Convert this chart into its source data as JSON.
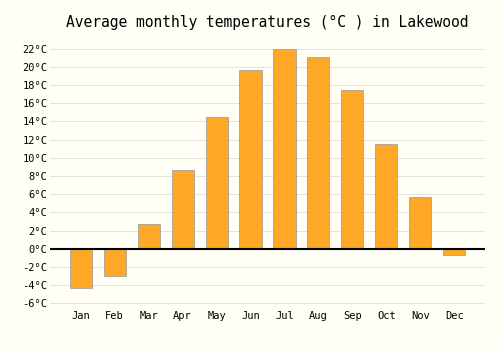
{
  "title": "Average monthly temperatures (°C ) in Lakewood",
  "months": [
    "Jan",
    "Feb",
    "Mar",
    "Apr",
    "May",
    "Jun",
    "Jul",
    "Aug",
    "Sep",
    "Oct",
    "Nov",
    "Dec"
  ],
  "values": [
    -4.3,
    -3.0,
    2.7,
    8.7,
    14.5,
    19.7,
    22.0,
    21.1,
    17.5,
    11.5,
    5.7,
    -0.7
  ],
  "bar_color": "#FFA726",
  "bar_edge_color": "#999999",
  "background_color": "#FFFFF5",
  "grid_color": "#DDDDDD",
  "ylim": [
    -6.5,
    23.5
  ],
  "yticks": [
    -6,
    -4,
    -2,
    0,
    2,
    4,
    6,
    8,
    10,
    12,
    14,
    16,
    18,
    20,
    22
  ],
  "title_fontsize": 10.5,
  "tick_fontsize": 7.5,
  "zero_line_color": "#000000",
  "bar_width": 0.65
}
